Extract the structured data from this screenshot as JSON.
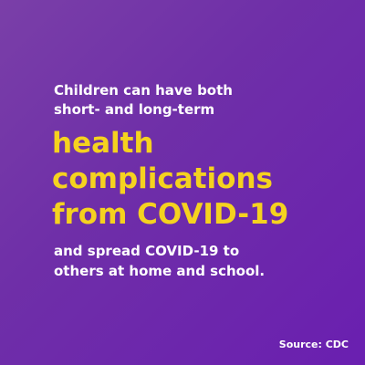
{
  "intro": {
    "line1": "Children can have both",
    "line2": "short- and long-term"
  },
  "headline": {
    "line1": "health",
    "line2": "complications",
    "line3": "from COVID-19"
  },
  "outro": {
    "line1": "and spread COVID-19 to",
    "line2": "others at home and school."
  },
  "source": "Source: CDC",
  "colors": {
    "background": "#6f2fa8",
    "headline": "#f5d21f",
    "body_text": "#ffffff"
  }
}
